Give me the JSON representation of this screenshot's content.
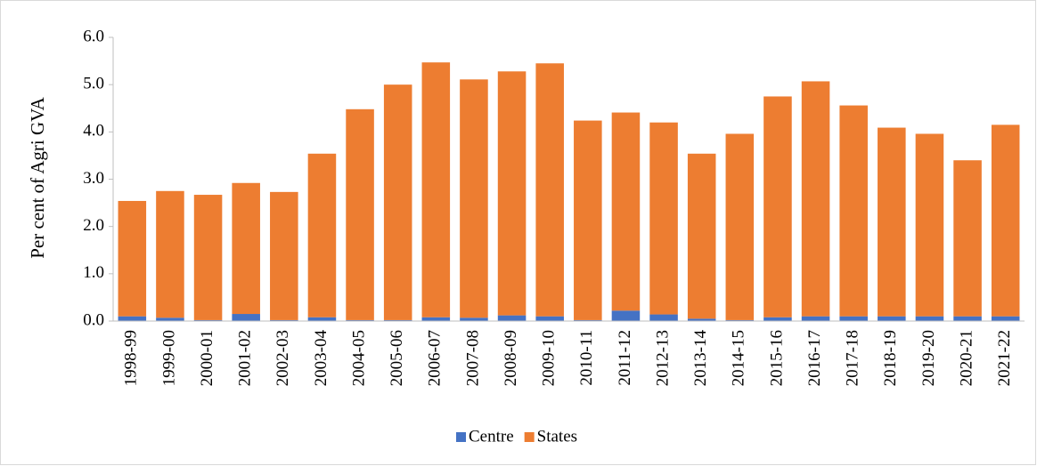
{
  "chart_data": {
    "type": "stacked_bar",
    "y_label": "Per cent of Agri GVA",
    "categories": [
      "1998-99",
      "1999-00",
      "2000-01",
      "2001-02",
      "2002-03",
      "2003-04",
      "2004-05",
      "2005-06",
      "2006-07",
      "2007-08",
      "2008-09",
      "2009-10",
      "2010-11",
      "2011-12",
      "2012-13",
      "2013-14",
      "2014-15",
      "2015-16",
      "2016-17",
      "2017-18",
      "2018-19",
      "2019-20",
      "2020-21",
      "2021-22"
    ],
    "series": [
      {
        "name": "Centre",
        "color": "#4472c4",
        "values": [
          0.1,
          0.07,
          0.02,
          0.15,
          0.02,
          0.08,
          0.02,
          0.02,
          0.08,
          0.07,
          0.12,
          0.1,
          0.02,
          0.22,
          0.14,
          0.05,
          0.02,
          0.08,
          0.1,
          0.1,
          0.1,
          0.1,
          0.1,
          0.1
        ]
      },
      {
        "name": "States",
        "color": "#ed7d31",
        "values": [
          2.44,
          2.68,
          2.65,
          2.77,
          2.71,
          3.46,
          4.46,
          4.98,
          5.39,
          5.04,
          5.16,
          5.35,
          4.22,
          4.19,
          4.06,
          3.49,
          3.94,
          4.67,
          4.97,
          4.46,
          3.99,
          3.86,
          3.3,
          4.05
        ]
      }
    ],
    "ylim": [
      0,
      6
    ],
    "yticks": [
      {
        "value": 0,
        "label": "0.0"
      },
      {
        "value": 1,
        "label": "1.0"
      },
      {
        "value": 2,
        "label": "2.0"
      },
      {
        "value": 3,
        "label": "3.0"
      },
      {
        "value": 4,
        "label": "4.0"
      },
      {
        "value": 5,
        "label": "5.0"
      },
      {
        "value": 6,
        "label": "6.0"
      }
    ],
    "legend": "bottom"
  }
}
